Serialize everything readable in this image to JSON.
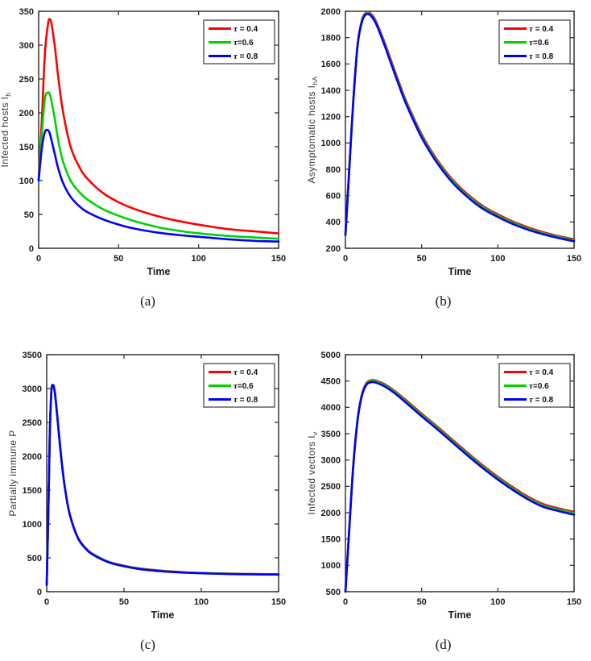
{
  "figure": {
    "description": "Four line plots (a)-(d) comparing epidemic model trajectories for three delay values tau over time",
    "colors": {
      "red": "#fe0000",
      "green": "#00d200",
      "blue": "#0000fe"
    }
  },
  "chart_data": [
    {
      "id": "a",
      "type": "line",
      "caption": "(a)",
      "title": "",
      "xlabel": "Time",
      "ylabel": "Infected  hosts I",
      "ylabel_sub": "h",
      "xlim": [
        0,
        150
      ],
      "ylim": [
        0,
        350
      ],
      "xticks": [
        0,
        50,
        100,
        150
      ],
      "yticks": [
        0,
        50,
        100,
        150,
        200,
        250,
        300,
        350
      ],
      "grid": false,
      "legend": {
        "position": "top-right",
        "entries": [
          {
            "label": "τ = 0.4",
            "color": "#fe0000"
          },
          {
            "label": "τ=0.6",
            "color": "#00d200"
          },
          {
            "label": "τ = 0.8",
            "color": "#0000fe"
          }
        ]
      },
      "x": [
        0,
        2,
        4,
        6,
        7,
        8,
        10,
        12,
        15,
        20,
        25,
        30,
        40,
        50,
        60,
        75,
        90,
        105,
        120,
        135,
        150
      ],
      "series": [
        {
          "name": "τ = 0.4",
          "color": "#fe0000",
          "values": [
            100,
            190,
            290,
            333,
            338,
            332,
            300,
            258,
            205,
            150,
            122,
            104,
            82,
            68,
            58,
            47,
            39,
            33,
            28,
            25,
            22
          ]
        },
        {
          "name": "τ=0.6",
          "color": "#00d200",
          "values": [
            100,
            170,
            222,
            230,
            227,
            218,
            192,
            163,
            130,
            100,
            84,
            73,
            58,
            48,
            40,
            31,
            25,
            21,
            18,
            16,
            14
          ]
        },
        {
          "name": "τ = 0.8",
          "color": "#0000fe",
          "values": [
            100,
            148,
            172,
            174,
            169,
            160,
            140,
            120,
            98,
            76,
            63,
            54,
            43,
            35,
            29,
            23,
            19,
            16,
            13,
            11,
            10
          ]
        }
      ],
      "layout": {
        "left_margin": 48
      }
    },
    {
      "id": "b",
      "type": "line",
      "caption": "(b)",
      "title": "",
      "xlabel": "Time",
      "ylabel": "Asymptomatic  hosts I",
      "ylabel_sub": "hA",
      "xlim": [
        0,
        150
      ],
      "ylim": [
        200,
        2000
      ],
      "xticks": [
        0,
        50,
        100,
        150
      ],
      "yticks": [
        200,
        400,
        600,
        800,
        1000,
        1200,
        1400,
        1600,
        1800,
        2000
      ],
      "grid": false,
      "legend": {
        "position": "top-right",
        "entries": [
          {
            "label": "τ = 0.4",
            "color": "#fe0000"
          },
          {
            "label": "τ=0.6",
            "color": "#00d200"
          },
          {
            "label": "τ = 0.8",
            "color": "#0000fe"
          }
        ]
      },
      "x": [
        0,
        2,
        5,
        8,
        11,
        14,
        17,
        20,
        25,
        30,
        35,
        40,
        50,
        60,
        70,
        80,
        90,
        100,
        110,
        120,
        130,
        140,
        150
      ],
      "series": [
        {
          "name": "τ = 0.4",
          "color": "#fe0000",
          "values": [
            300,
            700,
            1300,
            1750,
            1940,
            1992,
            1978,
            1925,
            1785,
            1625,
            1465,
            1315,
            1065,
            875,
            725,
            612,
            522,
            458,
            402,
            358,
            322,
            292,
            268
          ]
        },
        {
          "name": "τ=0.6",
          "color": "#00d200",
          "values": [
            300,
            696,
            1294,
            1744,
            1933,
            1985,
            1970,
            1916,
            1774,
            1613,
            1453,
            1303,
            1053,
            863,
            713,
            601,
            512,
            448,
            393,
            349,
            314,
            285,
            261
          ]
        },
        {
          "name": "τ = 0.8",
          "color": "#0000fe",
          "values": [
            300,
            692,
            1288,
            1738,
            1926,
            1978,
            1962,
            1907,
            1763,
            1601,
            1441,
            1291,
            1041,
            851,
            702,
            590,
            501,
            438,
            383,
            340,
            306,
            277,
            253
          ]
        }
      ],
      "layout": {
        "left_margin": 62
      }
    },
    {
      "id": "c",
      "type": "line",
      "caption": "(c)",
      "title": "",
      "xlabel": "Time",
      "ylabel": "Partially immune P",
      "ylabel_sub": "",
      "xlim": [
        0,
        150
      ],
      "ylim": [
        0,
        3500
      ],
      "xticks": [
        0,
        50,
        100,
        150
      ],
      "yticks": [
        0,
        500,
        1000,
        1500,
        2000,
        2500,
        3000,
        3500
      ],
      "grid": false,
      "legend": {
        "position": "top-right",
        "entries": [
          {
            "label": "τ = 0.4",
            "color": "#fe0000"
          },
          {
            "label": "τ=0.6",
            "color": "#00d200"
          },
          {
            "label": "τ = 0.8",
            "color": "#0000fe"
          }
        ]
      },
      "x": [
        0,
        1,
        2,
        3,
        4,
        5,
        6,
        8,
        10,
        12,
        15,
        20,
        25,
        30,
        40,
        50,
        60,
        75,
        90,
        105,
        120,
        135,
        150
      ],
      "series": [
        {
          "name": "τ = 0.4",
          "color": "#fe0000",
          "values": [
            100,
            1108,
            2312,
            2958,
            3054,
            2988,
            2798,
            2310,
            1860,
            1510,
            1140,
            810,
            650,
            555,
            443,
            383,
            343,
            308,
            286,
            274,
            266,
            261,
            258
          ]
        },
        {
          "name": "τ=0.6",
          "color": "#00d200",
          "values": [
            100,
            1104,
            2306,
            2954,
            3052,
            2984,
            2794,
            2305,
            1855,
            1505,
            1135,
            805,
            645,
            550,
            439,
            379,
            339,
            304,
            283,
            271,
            263,
            258,
            255
          ]
        },
        {
          "name": "τ = 0.8",
          "color": "#0000fe",
          "values": [
            100,
            1100,
            2300,
            2950,
            3050,
            2980,
            2790,
            2300,
            1850,
            1500,
            1130,
            800,
            640,
            545,
            435,
            375,
            335,
            300,
            280,
            268,
            260,
            255,
            252
          ]
        }
      ],
      "layout": {
        "left_margin": 58
      }
    },
    {
      "id": "d",
      "type": "line",
      "caption": "(d)",
      "title": "",
      "xlabel": "Time",
      "ylabel": "Infected vectors I",
      "ylabel_sub": "v",
      "xlim": [
        0,
        150
      ],
      "ylim": [
        500,
        5000
      ],
      "xticks": [
        0,
        50,
        100,
        150
      ],
      "yticks": [
        500,
        1000,
        1500,
        2000,
        2500,
        3000,
        3500,
        4000,
        4500,
        5000
      ],
      "grid": false,
      "legend": {
        "position": "top-right",
        "entries": [
          {
            "label": "τ = 0.4",
            "color": "#fe0000"
          },
          {
            "label": "τ=0.6",
            "color": "#00d200"
          },
          {
            "label": "τ = 0.8",
            "color": "#0000fe"
          }
        ]
      },
      "x": [
        0,
        2,
        5,
        8,
        11,
        14,
        17,
        20,
        25,
        30,
        35,
        40,
        50,
        60,
        70,
        80,
        90,
        100,
        110,
        120,
        130,
        140,
        150
      ],
      "series": [
        {
          "name": "τ = 0.4",
          "color": "#fe0000",
          "values": [
            500,
            1450,
            2850,
            3780,
            4270,
            4470,
            4515,
            4508,
            4450,
            4360,
            4250,
            4130,
            3880,
            3640,
            3390,
            3140,
            2900,
            2680,
            2480,
            2300,
            2160,
            2080,
            2015
          ]
        },
        {
          "name": "τ=0.6",
          "color": "#00d200",
          "values": [
            500,
            1442,
            2840,
            3768,
            4256,
            4454,
            4498,
            4490,
            4431,
            4340,
            4229,
            4108,
            3857,
            3616,
            3366,
            3116,
            2876,
            2656,
            2456,
            2276,
            2136,
            2056,
            1990
          ]
        },
        {
          "name": "τ = 0.8",
          "color": "#0000fe",
          "values": [
            500,
            1434,
            2828,
            3754,
            4240,
            4436,
            4478,
            4469,
            4409,
            4317,
            4205,
            4083,
            3831,
            3589,
            3339,
            3089,
            2849,
            2629,
            2429,
            2249,
            2109,
            2029,
            1962
          ]
        }
      ],
      "layout": {
        "left_margin": 62
      }
    }
  ]
}
